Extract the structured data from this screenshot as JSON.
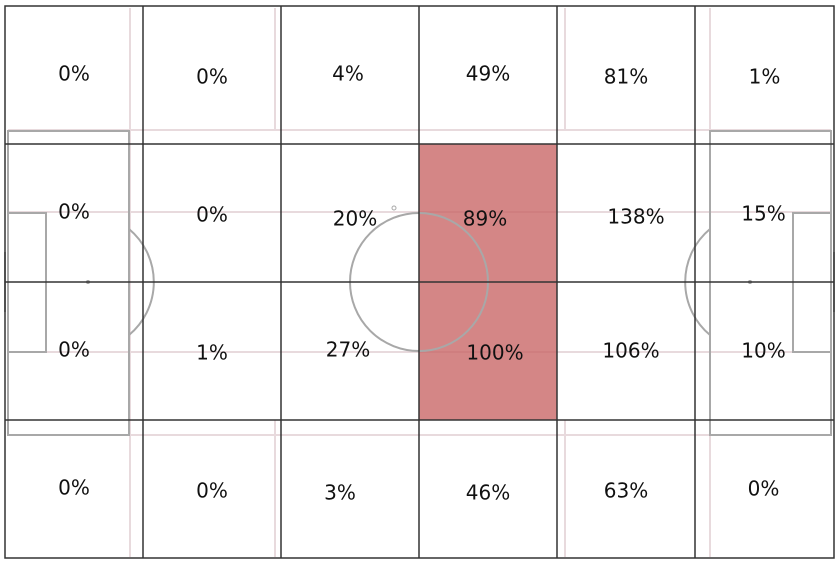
{
  "chart_data": {
    "type": "heatmap",
    "title": "",
    "rows": 4,
    "cols": 6,
    "highlight_color": "#c86464",
    "cells": [
      [
        {
          "label": "0%",
          "value": 0
        },
        {
          "label": "0%",
          "value": 0
        },
        {
          "label": "4%",
          "value": 4
        },
        {
          "label": "49%",
          "value": 49
        },
        {
          "label": "81%",
          "value": 81
        },
        {
          "label": "1%",
          "value": 1
        }
      ],
      [
        {
          "label": "0%",
          "value": 0
        },
        {
          "label": "0%",
          "value": 0
        },
        {
          "label": "20%",
          "value": 20
        },
        {
          "label": "89%",
          "value": 89,
          "highlight": true
        },
        {
          "label": "138%",
          "value": 138
        },
        {
          "label": "15%",
          "value": 15
        }
      ],
      [
        {
          "label": "0%",
          "value": 0
        },
        {
          "label": "1%",
          "value": 1
        },
        {
          "label": "27%",
          "value": 27
        },
        {
          "label": "100%",
          "value": 100,
          "highlight": true
        },
        {
          "label": "106%",
          "value": 106
        },
        {
          "label": "10%",
          "value": 10
        }
      ],
      [
        {
          "label": "0%",
          "value": 0
        },
        {
          "label": "0%",
          "value": 0
        },
        {
          "label": "3%",
          "value": 3
        },
        {
          "label": "46%",
          "value": 46
        },
        {
          "label": "63%",
          "value": 63
        },
        {
          "label": "0%",
          "value": 0
        }
      ]
    ]
  }
}
